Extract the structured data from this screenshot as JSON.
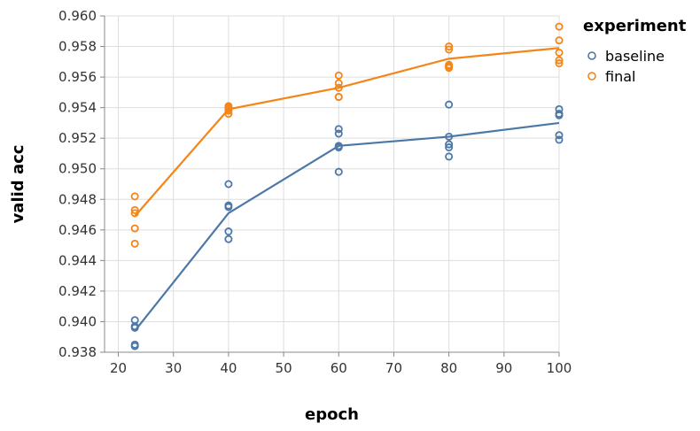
{
  "chart_data": {
    "type": "line",
    "xlabel": "epoch",
    "ylabel": "valid acc",
    "xlim": [
      17.5,
      100
    ],
    "ylim": [
      0.938,
      0.96
    ],
    "x_ticks": [
      20,
      30,
      40,
      50,
      60,
      70,
      80,
      90,
      100
    ],
    "y_ticks": [
      0.938,
      0.94,
      0.942,
      0.944,
      0.946,
      0.948,
      0.95,
      0.952,
      0.954,
      0.956,
      0.958,
      0.96
    ],
    "x_tick_labels": [
      "20",
      "30",
      "40",
      "50",
      "60",
      "70",
      "80",
      "90",
      "100"
    ],
    "y_tick_labels": [
      "0.938",
      "0.940",
      "0.942",
      "0.944",
      "0.946",
      "0.948",
      "0.950",
      "0.952",
      "0.954",
      "0.956",
      "0.958",
      "0.960"
    ],
    "grid": true,
    "legend": {
      "title": "experiment",
      "placement": "top-right"
    },
    "series": [
      {
        "name": "baseline",
        "color": "#4c78a8",
        "line": {
          "x": [
            23,
            40,
            60,
            80,
            100
          ],
          "y": [
            0.9394,
            0.9471,
            0.9515,
            0.9521,
            0.953
          ]
        },
        "points": [
          [
            23,
            0.9401
          ],
          [
            23,
            0.9397
          ],
          [
            23,
            0.9396
          ],
          [
            23,
            0.9385
          ],
          [
            23,
            0.9384
          ],
          [
            40,
            0.949
          ],
          [
            40,
            0.9476
          ],
          [
            40,
            0.9475
          ],
          [
            40,
            0.9459
          ],
          [
            40,
            0.9454
          ],
          [
            60,
            0.9526
          ],
          [
            60,
            0.9523
          ],
          [
            60,
            0.9515
          ],
          [
            60,
            0.9514
          ],
          [
            60,
            0.9498
          ],
          [
            80,
            0.9542
          ],
          [
            80,
            0.9521
          ],
          [
            80,
            0.9516
          ],
          [
            80,
            0.9514
          ],
          [
            80,
            0.9508
          ],
          [
            100,
            0.9539
          ],
          [
            100,
            0.9536
          ],
          [
            100,
            0.9535
          ],
          [
            100,
            0.9522
          ],
          [
            100,
            0.9519
          ]
        ]
      },
      {
        "name": "final",
        "color": "#f58518",
        "line": {
          "x": [
            23,
            40,
            60,
            80,
            100
          ],
          "y": [
            0.9469,
            0.9539,
            0.9553,
            0.9572,
            0.9579
          ]
        },
        "points": [
          [
            23,
            0.9482
          ],
          [
            23,
            0.9473
          ],
          [
            23,
            0.9471
          ],
          [
            23,
            0.9461
          ],
          [
            23,
            0.9451
          ],
          [
            40,
            0.9541
          ],
          [
            40,
            0.954
          ],
          [
            40,
            0.9539
          ],
          [
            40,
            0.9538
          ],
          [
            40,
            0.9536
          ],
          [
            60,
            0.9561
          ],
          [
            60,
            0.9556
          ],
          [
            60,
            0.9553
          ],
          [
            60,
            0.9547
          ],
          [
            60,
            0.9547
          ],
          [
            80,
            0.958
          ],
          [
            80,
            0.9578
          ],
          [
            80,
            0.9568
          ],
          [
            80,
            0.9567
          ],
          [
            80,
            0.9566
          ],
          [
            100,
            0.9593
          ],
          [
            100,
            0.9584
          ],
          [
            100,
            0.9576
          ],
          [
            100,
            0.9571
          ],
          [
            100,
            0.9569
          ]
        ]
      }
    ]
  }
}
